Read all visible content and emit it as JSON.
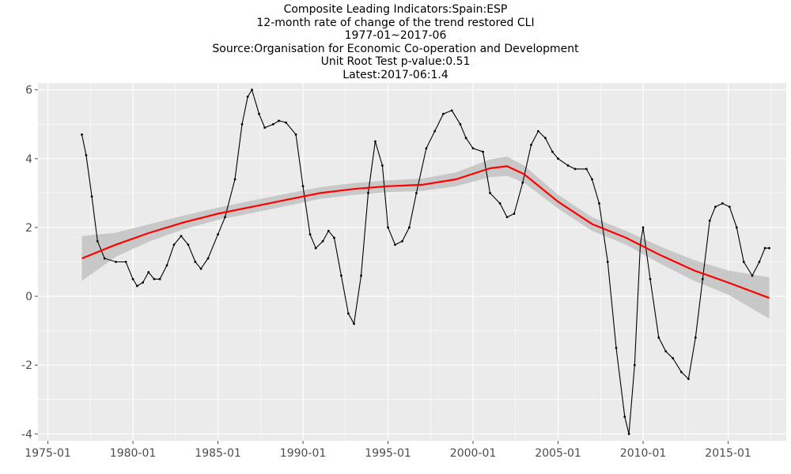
{
  "chart_data": {
    "type": "line",
    "title_lines": [
      "Composite Leading Indicators:Spain:ESP",
      "12-month rate of change of the trend restored CLI",
      "1977-01~2017-06",
      "Source:Organisation for Economic Co-operation and Development",
      "Unit Root Test p-value:0.51",
      "Latest:2017-06:1.4"
    ],
    "xlabel": "",
    "ylabel": "",
    "x_ticks": [
      "1975-01",
      "1980-01",
      "1985-01",
      "1990-01",
      "1995-01",
      "2000-01",
      "2005-01",
      "2010-01",
      "2015-01"
    ],
    "y_ticks": [
      -4,
      -2,
      0,
      2,
      4,
      6
    ],
    "xlim": [
      "1974-06",
      "2018-06"
    ],
    "ylim": [
      -4.2,
      6.2
    ],
    "grid": true,
    "colors": {
      "panel_background": "#ebebeb",
      "grid": "#ffffff",
      "series": "#000000",
      "smooth": "#ff0000",
      "band": "#c4c4c4"
    },
    "series": [
      {
        "values": [
          [
            "1977-01",
            4.7
          ],
          [
            "1977-04",
            4.1
          ],
          [
            "1977-08",
            2.9
          ],
          [
            "1977-12",
            1.6
          ],
          [
            "1978-05",
            1.1
          ],
          [
            "1979-01",
            1.0
          ],
          [
            "1979-08",
            1.0
          ],
          [
            "1980-01",
            0.5
          ],
          [
            "1980-04",
            0.3
          ],
          [
            "1980-08",
            0.4
          ],
          [
            "1980-12",
            0.7
          ],
          [
            "1981-04",
            0.5
          ],
          [
            "1981-08",
            0.5
          ],
          [
            "1982-01",
            0.9
          ],
          [
            "1982-06",
            1.5
          ],
          [
            "1982-11",
            1.75
          ],
          [
            "1983-04",
            1.5
          ],
          [
            "1983-09",
            1.0
          ],
          [
            "1984-01",
            0.8
          ],
          [
            "1984-06",
            1.1
          ],
          [
            "1985-01",
            1.8
          ],
          [
            "1985-06",
            2.3
          ],
          [
            "1986-01",
            3.4
          ],
          [
            "1986-06",
            5.0
          ],
          [
            "1986-10",
            5.8
          ],
          [
            "1987-01",
            6.0
          ],
          [
            "1987-06",
            5.3
          ],
          [
            "1987-10",
            4.9
          ],
          [
            "1988-04",
            5.0
          ],
          [
            "1988-08",
            5.1
          ],
          [
            "1989-01",
            5.05
          ],
          [
            "1989-08",
            4.7
          ],
          [
            "1990-01",
            3.2
          ],
          [
            "1990-06",
            1.8
          ],
          [
            "1990-10",
            1.4
          ],
          [
            "1991-03",
            1.6
          ],
          [
            "1991-07",
            1.9
          ],
          [
            "1991-11",
            1.7
          ],
          [
            "1992-04",
            0.6
          ],
          [
            "1992-09",
            -0.5
          ],
          [
            "1993-01",
            -0.8
          ],
          [
            "1993-06",
            0.6
          ],
          [
            "1993-11",
            3.0
          ],
          [
            "1994-04",
            4.5
          ],
          [
            "1994-09",
            3.8
          ],
          [
            "1995-01",
            2.0
          ],
          [
            "1995-06",
            1.5
          ],
          [
            "1995-11",
            1.6
          ],
          [
            "1996-04",
            2.0
          ],
          [
            "1996-09",
            3.0
          ],
          [
            "1997-04",
            4.3
          ],
          [
            "1997-10",
            4.8
          ],
          [
            "1998-04",
            5.3
          ],
          [
            "1998-10",
            5.4
          ],
          [
            "1999-04",
            5.0
          ],
          [
            "1999-08",
            4.6
          ],
          [
            "2000-01",
            4.3
          ],
          [
            "2000-08",
            4.2
          ],
          [
            "2001-01",
            3.0
          ],
          [
            "2001-08",
            2.7
          ],
          [
            "2002-01",
            2.3
          ],
          [
            "2002-06",
            2.4
          ],
          [
            "2002-12",
            3.3
          ],
          [
            "2003-06",
            4.4
          ],
          [
            "2003-11",
            4.8
          ],
          [
            "2004-04",
            4.6
          ],
          [
            "2004-09",
            4.2
          ],
          [
            "2005-01",
            4.0
          ],
          [
            "2005-08",
            3.8
          ],
          [
            "2006-01",
            3.7
          ],
          [
            "2006-09",
            3.7
          ],
          [
            "2007-01",
            3.4
          ],
          [
            "2007-06",
            2.7
          ],
          [
            "2007-12",
            1.0
          ],
          [
            "2008-06",
            -1.5
          ],
          [
            "2008-12",
            -3.5
          ],
          [
            "2009-03",
            -4.0
          ],
          [
            "2009-07",
            -2.0
          ],
          [
            "2009-11",
            1.5
          ],
          [
            "2010-01",
            2.0
          ],
          [
            "2010-06",
            0.5
          ],
          [
            "2010-12",
            -1.2
          ],
          [
            "2011-05",
            -1.6
          ],
          [
            "2011-10",
            -1.8
          ],
          [
            "2012-04",
            -2.2
          ],
          [
            "2012-09",
            -2.4
          ],
          [
            "2013-02",
            -1.2
          ],
          [
            "2013-07",
            0.5
          ],
          [
            "2013-12",
            2.2
          ],
          [
            "2014-04",
            2.6
          ],
          [
            "2014-09",
            2.7
          ],
          [
            "2015-02",
            2.6
          ],
          [
            "2015-07",
            2.0
          ],
          [
            "2015-12",
            1.0
          ],
          [
            "2016-06",
            0.6
          ],
          [
            "2016-11",
            1.0
          ],
          [
            "2017-03",
            1.4
          ],
          [
            "2017-06",
            1.4
          ]
        ]
      }
    ],
    "smooth": [
      [
        "1977-01",
        1.1
      ],
      [
        "1979-01",
        1.5
      ],
      [
        "1981-01",
        1.85
      ],
      [
        "1983-01",
        2.15
      ],
      [
        "1985-01",
        2.4
      ],
      [
        "1987-01",
        2.6
      ],
      [
        "1989-01",
        2.8
      ],
      [
        "1991-01",
        3.0
      ],
      [
        "1993-01",
        3.12
      ],
      [
        "1995-01",
        3.2
      ],
      [
        "1997-01",
        3.24
      ],
      [
        "1999-01",
        3.4
      ],
      [
        "2001-01",
        3.72
      ],
      [
        "2002-01",
        3.78
      ],
      [
        "2003-01",
        3.55
      ],
      [
        "2005-01",
        2.75
      ],
      [
        "2007-01",
        2.1
      ],
      [
        "2009-01",
        1.7
      ],
      [
        "2011-01",
        1.2
      ],
      [
        "2013-01",
        0.75
      ],
      [
        "2015-01",
        0.4
      ],
      [
        "2017-06",
        -0.05
      ]
    ],
    "band_upper": [
      [
        "1977-01",
        1.75
      ],
      [
        "1979-01",
        1.85
      ],
      [
        "1981-01",
        2.1
      ],
      [
        "1983-01",
        2.35
      ],
      [
        "1985-01",
        2.58
      ],
      [
        "1987-01",
        2.78
      ],
      [
        "1989-01",
        2.98
      ],
      [
        "1991-01",
        3.17
      ],
      [
        "1993-01",
        3.29
      ],
      [
        "1995-01",
        3.37
      ],
      [
        "1997-01",
        3.42
      ],
      [
        "1999-01",
        3.6
      ],
      [
        "2001-01",
        3.98
      ],
      [
        "2002-01",
        4.06
      ],
      [
        "2003-01",
        3.8
      ],
      [
        "2005-01",
        2.95
      ],
      [
        "2007-01",
        2.3
      ],
      [
        "2009-01",
        1.9
      ],
      [
        "2011-01",
        1.45
      ],
      [
        "2013-01",
        1.05
      ],
      [
        "2015-01",
        0.75
      ],
      [
        "2017-06",
        0.55
      ]
    ],
    "band_lower": [
      [
        "1977-01",
        0.45
      ],
      [
        "1979-01",
        1.15
      ],
      [
        "1981-01",
        1.6
      ],
      [
        "1983-01",
        1.95
      ],
      [
        "1985-01",
        2.22
      ],
      [
        "1987-01",
        2.42
      ],
      [
        "1989-01",
        2.62
      ],
      [
        "1991-01",
        2.83
      ],
      [
        "1993-01",
        2.95
      ],
      [
        "1995-01",
        3.03
      ],
      [
        "1997-01",
        3.06
      ],
      [
        "1999-01",
        3.2
      ],
      [
        "2001-01",
        3.46
      ],
      [
        "2002-01",
        3.5
      ],
      [
        "2003-01",
        3.3
      ],
      [
        "2005-01",
        2.55
      ],
      [
        "2007-01",
        1.9
      ],
      [
        "2009-01",
        1.5
      ],
      [
        "2011-01",
        0.95
      ],
      [
        "2013-01",
        0.45
      ],
      [
        "2015-01",
        0.05
      ],
      [
        "2017-06",
        -0.65
      ]
    ]
  }
}
